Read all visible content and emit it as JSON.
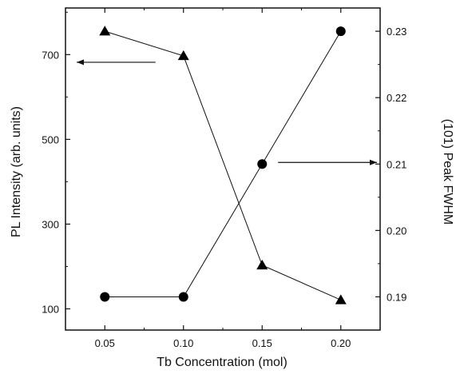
{
  "chart_data": {
    "type": "line",
    "xlabel": "Tb Concentration (mol)",
    "ylabel_left": "PL Intensity (arb. units)",
    "ylabel_right": "(101) Peak FWHM",
    "x": [
      0.05,
      0.1,
      0.15,
      0.2
    ],
    "x_ticks": [
      "0.05",
      "0.10",
      "0.15",
      "0.20"
    ],
    "xlim": [
      0.025,
      0.225
    ],
    "ylim_left": [
      50,
      810
    ],
    "ylim_right": [
      0.185,
      0.2335
    ],
    "y_left_ticks": [
      "100",
      "300",
      "500",
      "700"
    ],
    "y_right_ticks": [
      "0.19",
      "0.20",
      "0.21",
      "0.22",
      "0.23"
    ],
    "grid": false,
    "series": [
      {
        "axis": "left",
        "marker": "triangle",
        "values": [
          755,
          697,
          203,
          121
        ]
      },
      {
        "axis": "right",
        "marker": "circle",
        "values": [
          0.19,
          0.19,
          0.21,
          0.23
        ]
      }
    ],
    "annotations": [
      {
        "arrow_points_to": "left axis",
        "near_x": 0.1
      },
      {
        "arrow_points_to": "right axis",
        "near_x": 0.15
      }
    ]
  }
}
